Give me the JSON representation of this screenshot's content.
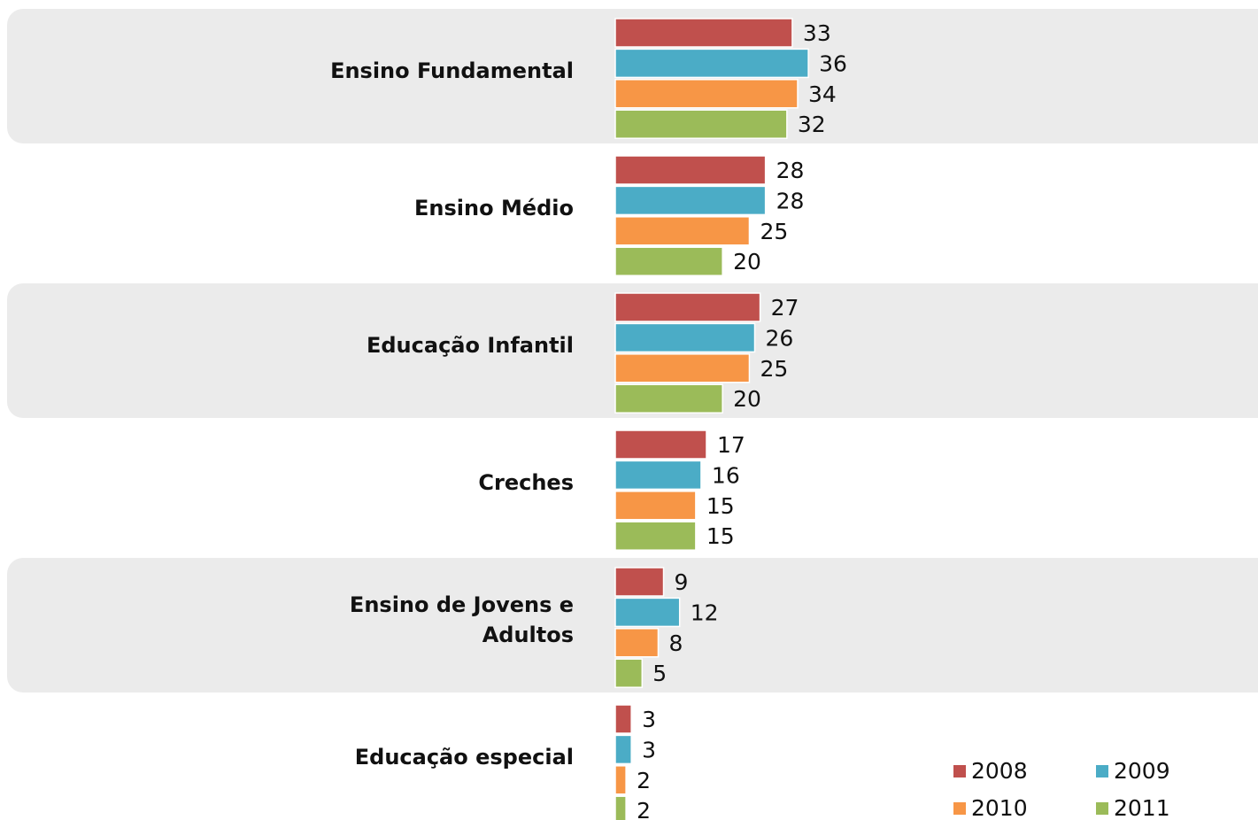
{
  "chart_data": {
    "type": "hbar",
    "categories": [
      "Ensino Fundamental",
      "Ensino Médio",
      "Educação Infantil",
      "Creches",
      "Ensino de Jovens e Adultos",
      "Educação especial"
    ],
    "series": [
      {
        "name": "2008",
        "color": "#c0504d",
        "values": [
          33,
          28,
          27,
          17,
          9,
          3
        ]
      },
      {
        "name": "2009",
        "color": "#4bacc6",
        "values": [
          36,
          28,
          26,
          16,
          12,
          3
        ]
      },
      {
        "name": "2010",
        "color": "#f79646",
        "values": [
          34,
          25,
          25,
          15,
          8,
          2
        ]
      },
      {
        "name": "2011",
        "color": "#9bbb59",
        "values": [
          32,
          20,
          20,
          15,
          5,
          2
        ]
      }
    ],
    "xlim": [
      0,
      120
    ],
    "legend": "bottom-right"
  }
}
